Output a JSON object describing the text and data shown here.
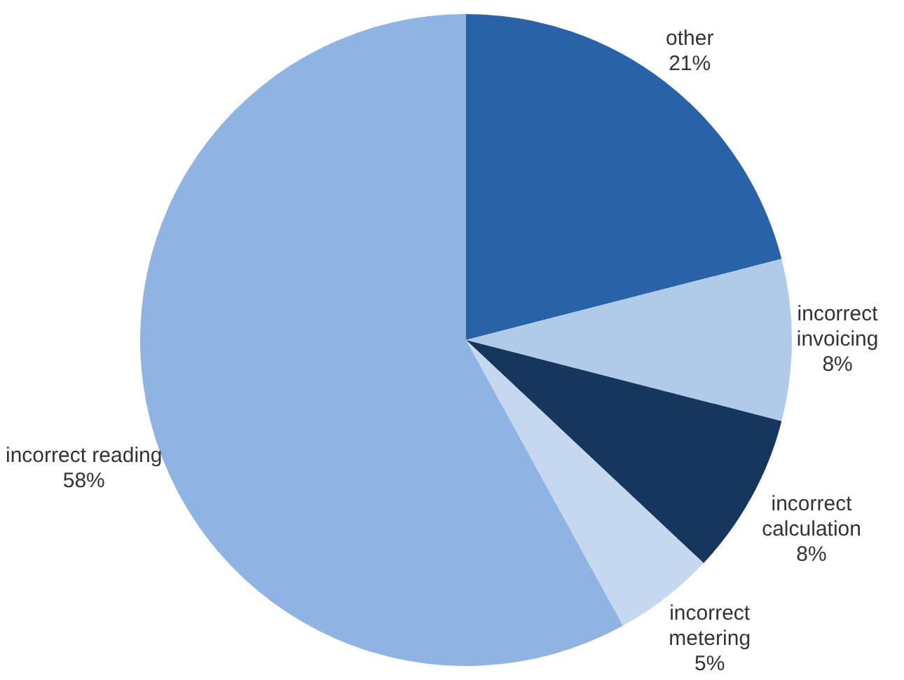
{
  "chart_data": {
    "type": "pie",
    "categories": [
      "other",
      "incorrect invoicing",
      "incorrect calculation",
      "incorrect metering",
      "incorrect reading"
    ],
    "values": [
      21,
      8,
      8,
      5,
      58
    ],
    "colors": [
      "#2a62a8",
      "#b0cbea",
      "#17365e",
      "#c6d8f0",
      "#8fb3e2"
    ],
    "value_labels": [
      "21%",
      "8%",
      "8%",
      "5%",
      "58%"
    ],
    "legend": false
  }
}
